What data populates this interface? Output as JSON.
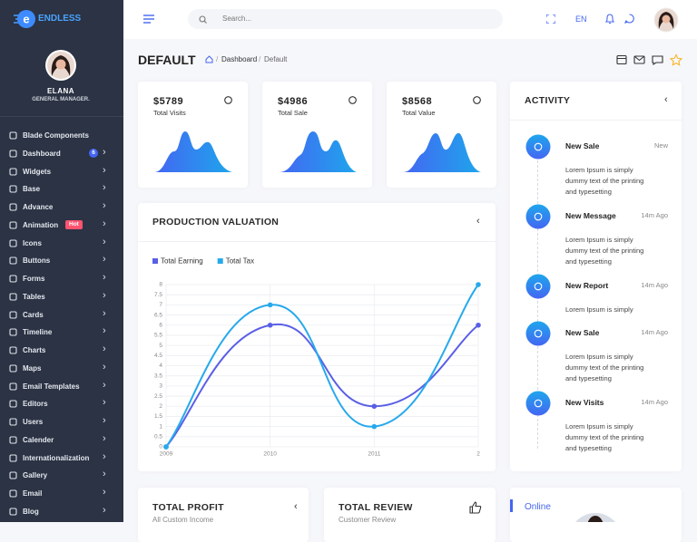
{
  "sidebar": {
    "logo": "ENDLESS",
    "profile": {
      "name": "ELANA",
      "role": "GENERAL MANAGER."
    },
    "menu": [
      {
        "label": "Blade Components"
      },
      {
        "label": "Dashboard",
        "badge": "6",
        "badge_color": "#4466f2"
      },
      {
        "label": "Widgets"
      },
      {
        "label": "Base"
      },
      {
        "label": "Advance"
      },
      {
        "label": "Animation",
        "badge": "Hot",
        "badge_color": "#ff5370"
      },
      {
        "label": "Icons"
      },
      {
        "label": "Buttons"
      },
      {
        "label": "Forms"
      },
      {
        "label": "Tables"
      },
      {
        "label": "Cards"
      },
      {
        "label": "Timeline"
      },
      {
        "label": "Charts"
      },
      {
        "label": "Maps"
      },
      {
        "label": "Email Templates"
      },
      {
        "label": "Editors"
      },
      {
        "label": "Users"
      },
      {
        "label": "Calender"
      },
      {
        "label": "Internationalization"
      },
      {
        "label": "Gallery"
      },
      {
        "label": "Email"
      },
      {
        "label": "Blog"
      }
    ]
  },
  "topbar": {
    "search": "Search...",
    "language": "EN"
  },
  "header": {
    "title": "DEFAULT",
    "breadcrumb": [
      "Dashboard",
      "Default"
    ]
  },
  "stats": [
    {
      "value": "$5789",
      "label": "Total Visits"
    },
    {
      "value": "$4986",
      "label": "Total Sale"
    },
    {
      "value": "$8568",
      "label": "Total Value"
    }
  ],
  "chart_data": {
    "type": "line",
    "title": "PRODUCTION VALUATION",
    "categories": [
      "2009",
      "2010",
      "2011",
      "2"
    ],
    "series": [
      {
        "name": "Total Earning",
        "color": "#5a5fe6",
        "values": [
          0,
          6,
          2,
          6
        ]
      },
      {
        "name": "Total Tax",
        "color": "#27a9ec",
        "values": [
          0,
          7,
          1,
          8
        ]
      }
    ],
    "ylim": [
      0,
      8
    ],
    "yticks": [
      0,
      0.5,
      1,
      1.5,
      2,
      2.5,
      3,
      3.5,
      4,
      4.5,
      5,
      5.5,
      6,
      6.5,
      7,
      7.5,
      8
    ],
    "grid": true,
    "smooth": true
  },
  "activity": {
    "title": "ACTIVITY",
    "items": [
      {
        "title": "New Sale",
        "time": "New",
        "text": "Lorem Ipsum is simply dummy text of the printing and typesetting"
      },
      {
        "title": "New Message",
        "time": "14m Ago",
        "text": "Lorem Ipsum is simply dummy text of the printing and typesetting"
      },
      {
        "title": "New Report",
        "time": "14m Ago",
        "text": "Lorem Ipsum is simply"
      },
      {
        "title": "New Sale",
        "time": "14m Ago",
        "text": "Lorem Ipsum is simply dummy text of the printing and typesetting"
      },
      {
        "title": "New Visits",
        "time": "14m Ago",
        "text": "Lorem Ipsum is simply dummy text of the printing and typesetting"
      }
    ]
  },
  "bottom": [
    {
      "title": "TOTAL PROFIT",
      "subtitle": "All Custom Income"
    },
    {
      "title": "TOTAL REVIEW",
      "subtitle": "Customer Review"
    },
    {
      "title": "Online"
    }
  ]
}
